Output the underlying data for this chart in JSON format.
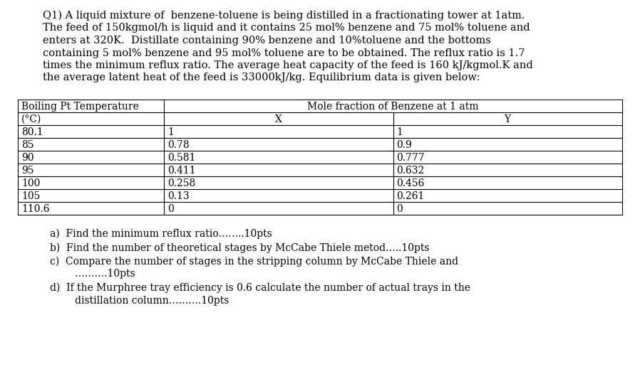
{
  "background_color": "#ffffff",
  "para_lines": [
    "Q1) A liquid mixture of  benzene-toluene is being distilled in a fractionating tower at 1atm.",
    "The feed of 150kgmol/h is liquid and it contains 25 mol% benzene and 75 mol% toluene and",
    "enters at 320K.  Distillate containing 90% benzene and 10%toluene and the bottoms",
    "containing 5 mol% benzene and 95 mol% toluene are to be obtained. The reflux ratio is 1.7",
    "times the minimum reflux ratio. The average heat capacity of the feed is 160 kJ/kgmol.K and",
    "the average latent heat of the feed is 33000kJ/kg. Equilibrium data is given below:"
  ],
  "table_data": [
    [
      "80.1",
      "1",
      "1"
    ],
    [
      "85",
      "0.78",
      "0.9"
    ],
    [
      "90",
      "0.581",
      "0.777"
    ],
    [
      "95",
      "0.411",
      "0.632"
    ],
    [
      "100",
      "0.258",
      "0.456"
    ],
    [
      "105",
      "0.13",
      "0.261"
    ],
    [
      "110.6",
      "0",
      "0"
    ]
  ],
  "questions": [
    [
      "a)  Find the minimum reflux ratio……..10pts"
    ],
    [
      "b)  Find the number of theoretical stages by McCabe Thiele metod…..10pts"
    ],
    [
      "c)  Compare the number of stages in the stripping column by McCabe Thiele and",
      "        ……….10pts"
    ],
    [
      "d)  If the Murphree tray efficiency is 0.6 calculate the number of actual trays in the",
      "        distillation column……….10pts"
    ]
  ],
  "font_size": 10.5,
  "font_family": "DejaVu Serif"
}
